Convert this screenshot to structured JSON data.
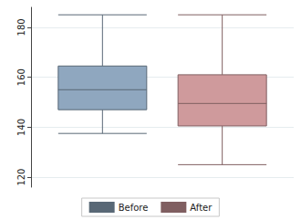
{
  "chart_data": {
    "type": "boxplot",
    "series": [
      {
        "name": "Before",
        "color": "#8fa7bf",
        "values": [
          137.5,
          147,
          155,
          164.5,
          185
        ]
      },
      {
        "name": "After",
        "color": "#cf9a9c",
        "values": [
          125,
          140.5,
          149.5,
          161,
          185
        ]
      }
    ],
    "ylim": [
      116,
      188
    ],
    "yticks": [
      120,
      140,
      160,
      180
    ],
    "grid": true,
    "legend": "bottom",
    "tick_labels": "y"
  }
}
